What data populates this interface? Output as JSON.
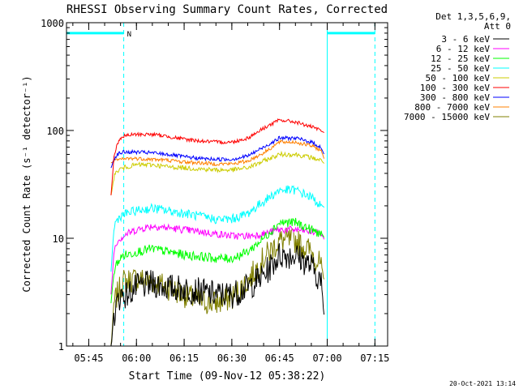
{
  "chart_data": {
    "type": "line",
    "title": "RHESSI Observing Summary Count Rates, Corrected",
    "ylabel": "Corrected Count Rate (s⁻¹ detector⁻¹)",
    "xlabel": "Start Time (09-Nov-12 05:38:22)",
    "yscale": "log",
    "ylim": [
      1,
      1000
    ],
    "ytick_labels": [
      "1",
      "10",
      "100",
      "1000"
    ],
    "ytick_values": [
      1,
      10,
      100,
      1000
    ],
    "xlim": [
      "05:38",
      "07:19"
    ],
    "xtick_labels": [
      "05:45",
      "06:00",
      "06:15",
      "06:30",
      "06:45",
      "07:00",
      "07:15"
    ],
    "xtick_minutes": [
      345,
      360,
      375,
      390,
      405,
      420,
      435
    ],
    "legend_title": [
      "Det 1,3,5,6,9,",
      "Att 0"
    ],
    "legend_position": "right",
    "night_label": "N",
    "night_bars": [
      {
        "start": "05:38",
        "end": "05:56",
        "level": 800
      },
      {
        "start": "07:00",
        "end": "07:15",
        "level": 800
      }
    ],
    "vertical_markers": [
      {
        "time": "05:56",
        "style": "dashed"
      },
      {
        "time": "07:00",
        "style": "solid"
      },
      {
        "time": "07:15",
        "style": "dashed"
      }
    ],
    "x_minutes": [
      352,
      353,
      354,
      355,
      356,
      357,
      360,
      365,
      370,
      375,
      380,
      385,
      390,
      395,
      400,
      405,
      410,
      415,
      418,
      419
    ],
    "series": [
      {
        "name": "3 - 6 keV",
        "color": "#000000",
        "values": [
          1.0,
          2.0,
          2.5,
          3.0,
          3.0,
          3.0,
          3.5,
          3.8,
          3.5,
          3.4,
          3.2,
          3.0,
          3.0,
          3.5,
          4.5,
          7.0,
          7.0,
          5.5,
          4.0,
          2.0
        ]
      },
      {
        "name": "6 - 12 keV",
        "color": "#ff00ff",
        "values": [
          3.0,
          8.0,
          9.5,
          10.0,
          10.5,
          11.0,
          12.0,
          13.0,
          12.5,
          12.0,
          11.5,
          11.0,
          10.5,
          10.5,
          11.0,
          12.0,
          12.0,
          11.5,
          11.0,
          10.0
        ]
      },
      {
        "name": "12 - 25 keV",
        "color": "#00ff00",
        "values": [
          2.5,
          5.0,
          6.0,
          6.5,
          7.0,
          7.0,
          7.5,
          8.0,
          7.5,
          7.0,
          6.8,
          6.5,
          6.5,
          7.5,
          10.0,
          14.0,
          14.0,
          12.0,
          11.0,
          10.0
        ]
      },
      {
        "name": "25 - 50 keV",
        "color": "#00ffff",
        "values": [
          5.0,
          13.0,
          15.0,
          16.0,
          16.5,
          17.0,
          18.0,
          19.0,
          18.0,
          17.0,
          16.0,
          15.0,
          15.0,
          17.0,
          22.0,
          28.0,
          28.0,
          24.0,
          20.0,
          19.0
        ]
      },
      {
        "name": "50 - 100 keV",
        "color": "#cccc00",
        "values": [
          25.0,
          38.0,
          42.0,
          44.0,
          45.0,
          46.0,
          48.0,
          48.0,
          46.0,
          45.0,
          44.0,
          43.0,
          43.0,
          45.0,
          52.0,
          60.0,
          60.0,
          56.0,
          53.0,
          50.0
        ]
      },
      {
        "name": "100 - 300 keV",
        "color": "#ff0000",
        "values": [
          25.0,
          60.0,
          75.0,
          85.0,
          88.0,
          90.0,
          92.0,
          92.0,
          88.0,
          83.0,
          80.0,
          78.0,
          78.0,
          85.0,
          105.0,
          125.0,
          120.0,
          108.0,
          100.0,
          95.0
        ]
      },
      {
        "name": "300 - 800 keV",
        "color": "#0000ff",
        "values": [
          45.0,
          55.0,
          60.0,
          62.0,
          63.0,
          63.0,
          63.0,
          62.0,
          60.0,
          57.0,
          55.0,
          54.0,
          54.0,
          58.0,
          70.0,
          85.0,
          85.0,
          78.0,
          70.0,
          60.0
        ]
      },
      {
        "name": "800 - 7000 keV",
        "color": "#ff8000",
        "values": [
          50.0,
          52.0,
          53.0,
          54.0,
          54.0,
          55.0,
          55.0,
          54.0,
          53.0,
          51.0,
          50.0,
          49.0,
          49.0,
          52.0,
          62.0,
          78.0,
          78.0,
          72.0,
          66.0,
          55.0
        ]
      },
      {
        "name": "7000 - 15000 keV",
        "color": "#808000",
        "values": [
          1.0,
          2.5,
          3.0,
          3.5,
          4.0,
          4.0,
          4.2,
          4.0,
          3.5,
          3.0,
          2.6,
          2.5,
          2.8,
          4.0,
          6.5,
          9.5,
          9.5,
          7.5,
          5.5,
          4.0
        ]
      }
    ]
  },
  "footer": {
    "timestamp": "20-Oct-2021 13:14"
  },
  "colors": {
    "night_bar": "#00ffff",
    "axis": "#000000",
    "background": "#ffffff"
  }
}
